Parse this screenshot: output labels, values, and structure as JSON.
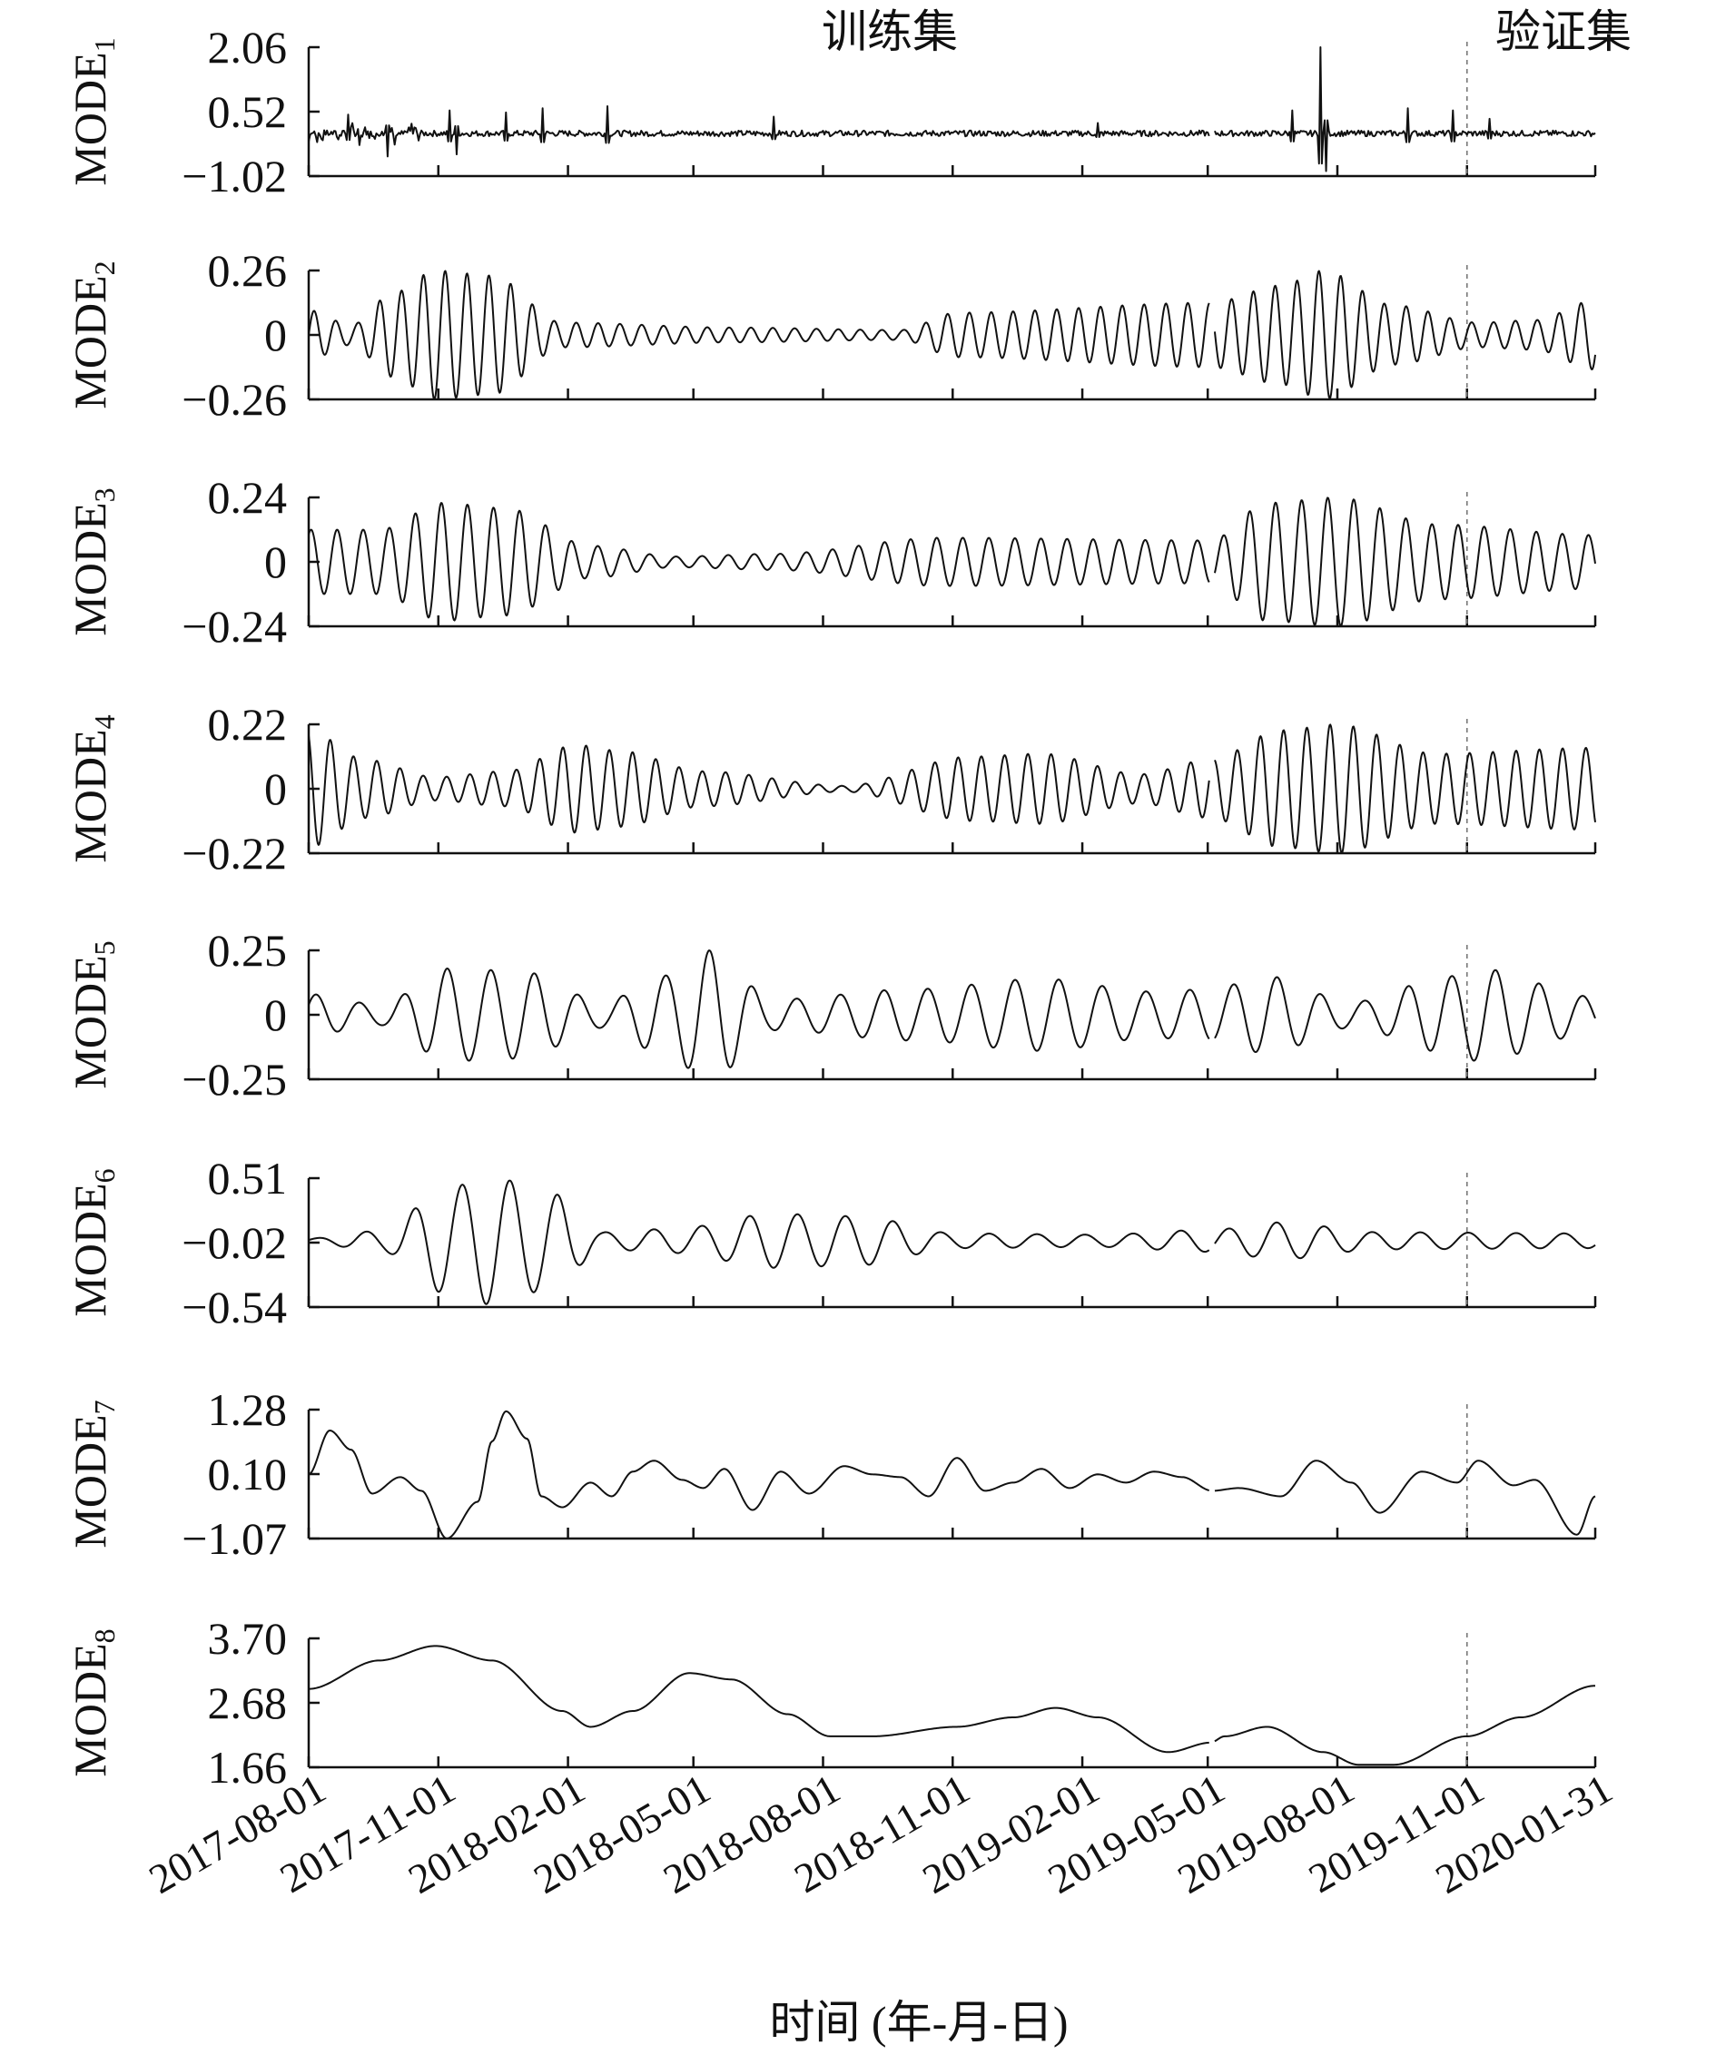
{
  "chart_data": {
    "type": "line",
    "x_axis": {
      "title": "时间 (年-月-日)",
      "tick_labels": [
        "2017-08-01",
        "2017-11-01",
        "2018-02-01",
        "2018-05-01",
        "2018-08-01",
        "2018-11-01",
        "2019-02-01",
        "2019-05-01",
        "2019-08-01",
        "2019-11-01",
        "2020-01-31"
      ],
      "tick_positions_days": [
        0,
        92,
        184,
        273,
        365,
        457,
        549,
        638,
        730,
        822,
        913
      ],
      "range_days": [
        0,
        913
      ]
    },
    "section_labels": {
      "train": "训练集",
      "validation": "验证集"
    },
    "split_day": 822,
    "gap_day": 641,
    "panels": [
      {
        "name": "MODE",
        "sub": "1",
        "yticks": [
          "2.06",
          "0.52",
          "−1.02"
        ],
        "ylim": [
          -1.02,
          2.06
        ],
        "shape": "noise",
        "baseline": 0.0,
        "noise_amp": 0.07,
        "spikes": [
          [
            28,
            0.45
          ],
          [
            56,
            -0.55
          ],
          [
            100,
            0.55
          ],
          [
            105,
            -0.5
          ],
          [
            140,
            0.5
          ],
          [
            166,
            0.6
          ],
          [
            212,
            0.65
          ],
          [
            330,
            0.4
          ],
          [
            560,
            0.25
          ],
          [
            698,
            0.55
          ],
          [
            718,
            2.06
          ],
          [
            722,
            -0.9
          ],
          [
            780,
            0.6
          ],
          [
            812,
            0.55
          ],
          [
            838,
            0.35
          ]
        ]
      },
      {
        "name": "MODE",
        "sub": "2",
        "yticks": [
          "0.26",
          "0",
          "−0.26"
        ],
        "ylim": [
          -0.26,
          0.26
        ],
        "shape": "wave",
        "period": 15.5,
        "phase": 0,
        "envelope": [
          [
            0,
            0.1
          ],
          [
            30,
            0.04
          ],
          [
            60,
            0.17
          ],
          [
            90,
            0.26
          ],
          [
            130,
            0.24
          ],
          [
            180,
            0.05
          ],
          [
            300,
            0.03
          ],
          [
            420,
            0.02
          ],
          [
            460,
            0.09
          ],
          [
            640,
            0.13
          ],
          [
            690,
            0.2
          ],
          [
            720,
            0.26
          ],
          [
            770,
            0.12
          ],
          [
            830,
            0.05
          ],
          [
            870,
            0.06
          ],
          [
            913,
            0.14
          ]
        ]
      },
      {
        "name": "MODE",
        "sub": "3",
        "yticks": [
          "0.24",
          "0",
          "−0.24"
        ],
        "ylim": [
          -0.24,
          0.24
        ],
        "shape": "wave",
        "period": 18.5,
        "phase": 1,
        "envelope": [
          [
            0,
            0.12
          ],
          [
            50,
            0.12
          ],
          [
            95,
            0.22
          ],
          [
            140,
            0.2
          ],
          [
            200,
            0.06
          ],
          [
            260,
            0.02
          ],
          [
            330,
            0.03
          ],
          [
            450,
            0.09
          ],
          [
            640,
            0.08
          ],
          [
            680,
            0.22
          ],
          [
            730,
            0.24
          ],
          [
            800,
            0.14
          ],
          [
            913,
            0.1
          ]
        ]
      },
      {
        "name": "MODE",
        "sub": "4",
        "yticks": [
          "0.22",
          "0",
          "−0.22"
        ],
        "ylim": [
          -0.22,
          0.22
        ],
        "shape": "wave",
        "period": 16.5,
        "phase": 2,
        "envelope": [
          [
            0,
            0.2
          ],
          [
            40,
            0.1
          ],
          [
            90,
            0.04
          ],
          [
            140,
            0.06
          ],
          [
            190,
            0.15
          ],
          [
            220,
            0.13
          ],
          [
            280,
            0.06
          ],
          [
            380,
            0.01
          ],
          [
            470,
            0.11
          ],
          [
            520,
            0.12
          ],
          [
            590,
            0.05
          ],
          [
            640,
            0.1
          ],
          [
            690,
            0.2
          ],
          [
            730,
            0.22
          ],
          [
            800,
            0.12
          ],
          [
            913,
            0.14
          ]
        ]
      },
      {
        "name": "MODE",
        "sub": "5",
        "yticks": [
          "0.25",
          "0",
          "−0.25"
        ],
        "ylim": [
          -0.25,
          0.25
        ],
        "shape": "wave",
        "period": 31,
        "phase": 0.5,
        "envelope": [
          [
            0,
            0.08
          ],
          [
            50,
            0.04
          ],
          [
            100,
            0.18
          ],
          [
            150,
            0.17
          ],
          [
            210,
            0.05
          ],
          [
            250,
            0.15
          ],
          [
            285,
            0.25
          ],
          [
            330,
            0.06
          ],
          [
            430,
            0.1
          ],
          [
            520,
            0.14
          ],
          [
            600,
            0.09
          ],
          [
            640,
            0.1
          ],
          [
            680,
            0.15
          ],
          [
            740,
            0.05
          ],
          [
            810,
            0.15
          ],
          [
            830,
            0.18
          ],
          [
            913,
            0.07
          ]
        ]
      },
      {
        "name": "MODE",
        "sub": "6",
        "yticks": [
          "0.51",
          "−0.02",
          "−0.54"
        ],
        "ylim": [
          -0.54,
          0.51
        ],
        "shape": "wave",
        "period": 34,
        "phase": 0.3,
        "envelope": [
          [
            0,
            0.02
          ],
          [
            50,
            0.08
          ],
          [
            100,
            0.44
          ],
          [
            130,
            0.52
          ],
          [
            170,
            0.4
          ],
          [
            210,
            0.07
          ],
          [
            260,
            0.1
          ],
          [
            330,
            0.22
          ],
          [
            390,
            0.2
          ],
          [
            460,
            0.06
          ],
          [
            560,
            0.05
          ],
          [
            640,
            0.09
          ],
          [
            690,
            0.15
          ],
          [
            760,
            0.07
          ],
          [
            913,
            0.06
          ]
        ]
      },
      {
        "name": "MODE",
        "sub": "7",
        "yticks": [
          "1.28",
          "0.10",
          "−1.07"
        ],
        "ylim": [
          -1.07,
          1.28
        ],
        "shape": "pts",
        "points": [
          [
            0,
            0.1
          ],
          [
            15,
            0.9
          ],
          [
            30,
            0.55
          ],
          [
            45,
            -0.25
          ],
          [
            65,
            0.05
          ],
          [
            80,
            -0.2
          ],
          [
            98,
            -1.07
          ],
          [
            120,
            -0.4
          ],
          [
            130,
            0.7
          ],
          [
            140,
            1.25
          ],
          [
            155,
            0.75
          ],
          [
            165,
            -0.3
          ],
          [
            180,
            -0.5
          ],
          [
            200,
            -0.05
          ],
          [
            215,
            -0.3
          ],
          [
            230,
            0.15
          ],
          [
            245,
            0.35
          ],
          [
            265,
            0.0
          ],
          [
            280,
            -0.15
          ],
          [
            295,
            0.2
          ],
          [
            315,
            -0.55
          ],
          [
            335,
            0.15
          ],
          [
            355,
            -0.25
          ],
          [
            380,
            0.25
          ],
          [
            400,
            0.1
          ],
          [
            420,
            0.05
          ],
          [
            440,
            -0.3
          ],
          [
            460,
            0.4
          ],
          [
            480,
            -0.2
          ],
          [
            500,
            -0.05
          ],
          [
            520,
            0.2
          ],
          [
            540,
            -0.15
          ],
          [
            560,
            0.1
          ],
          [
            580,
            -0.05
          ],
          [
            600,
            0.15
          ],
          [
            620,
            0.05
          ],
          [
            641,
            -0.2
          ],
          [
            660,
            -0.15
          ],
          [
            690,
            -0.3
          ],
          [
            715,
            0.35
          ],
          [
            740,
            -0.05
          ],
          [
            760,
            -0.6
          ],
          [
            790,
            0.15
          ],
          [
            815,
            -0.05
          ],
          [
            830,
            0.35
          ],
          [
            855,
            -0.1
          ],
          [
            870,
            0.0
          ],
          [
            900,
            -1.0
          ],
          [
            913,
            -0.3
          ]
        ]
      },
      {
        "name": "MODE",
        "sub": "8",
        "yticks": [
          "3.70",
          "2.68",
          "1.66"
        ],
        "ylim": [
          1.66,
          3.7
        ],
        "shape": "pts",
        "points": [
          [
            0,
            2.9
          ],
          [
            50,
            3.35
          ],
          [
            90,
            3.58
          ],
          [
            130,
            3.35
          ],
          [
            180,
            2.55
          ],
          [
            200,
            2.3
          ],
          [
            230,
            2.55
          ],
          [
            270,
            3.15
          ],
          [
            300,
            3.05
          ],
          [
            340,
            2.5
          ],
          [
            370,
            2.15
          ],
          [
            400,
            2.15
          ],
          [
            460,
            2.3
          ],
          [
            500,
            2.45
          ],
          [
            530,
            2.6
          ],
          [
            560,
            2.45
          ],
          [
            610,
            1.9
          ],
          [
            640,
            2.05
          ],
          [
            650,
            2.15
          ],
          [
            680,
            2.3
          ],
          [
            720,
            1.9
          ],
          [
            745,
            1.7
          ],
          [
            770,
            1.7
          ],
          [
            822,
            2.15
          ],
          [
            860,
            2.45
          ],
          [
            913,
            2.95
          ]
        ]
      }
    ]
  }
}
